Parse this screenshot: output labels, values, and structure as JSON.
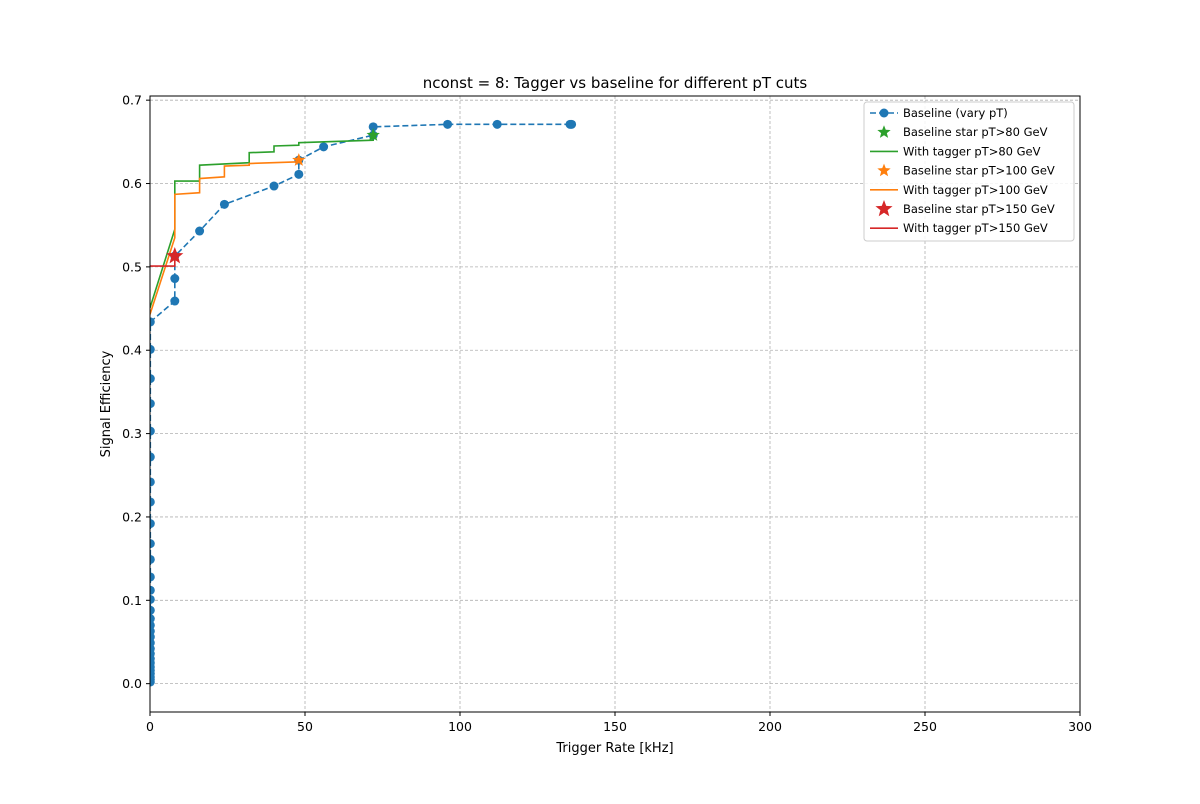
{
  "chart_data": {
    "type": "line",
    "title": "nconst = 8: Tagger vs baseline for different pT cuts",
    "xlabel": "Trigger Rate [kHz]",
    "ylabel": "Signal Efficiency",
    "xlim": [
      0,
      300
    ],
    "ylim": [
      -0.034,
      0.705
    ],
    "x_ticks": [
      0,
      50,
      100,
      150,
      200,
      250,
      300
    ],
    "y_ticks": [
      0.0,
      0.1,
      0.2,
      0.3,
      0.4,
      0.5,
      0.6,
      0.7
    ],
    "x_tick_labels": [
      "0",
      "50",
      "100",
      "150",
      "200",
      "250",
      "300"
    ],
    "y_tick_labels": [
      "0.0",
      "0.1",
      "0.2",
      "0.3",
      "0.4",
      "0.5",
      "0.6",
      "0.7"
    ],
    "grid": true,
    "legend_position": "top-right",
    "series": [
      {
        "name": "Baseline (vary pT)",
        "kind": "line-markers",
        "color": "#1f77b4",
        "linestyle": "dashed",
        "points": [
          [
            0.1,
            0.002
          ],
          [
            0.1,
            0.005
          ],
          [
            0.1,
            0.008
          ],
          [
            0.1,
            0.012
          ],
          [
            0.1,
            0.016
          ],
          [
            0.1,
            0.02
          ],
          [
            0.1,
            0.025
          ],
          [
            0.1,
            0.03
          ],
          [
            0.1,
            0.036
          ],
          [
            0.1,
            0.042
          ],
          [
            0.1,
            0.049
          ],
          [
            0.1,
            0.056
          ],
          [
            0.1,
            0.063
          ],
          [
            0.1,
            0.07
          ],
          [
            0.1,
            0.078
          ],
          [
            0.1,
            0.088
          ],
          [
            0.1,
            0.101
          ],
          [
            0.1,
            0.112
          ],
          [
            0.1,
            0.128
          ],
          [
            0.1,
            0.149
          ],
          [
            0.1,
            0.168
          ],
          [
            0.1,
            0.192
          ],
          [
            0.1,
            0.218
          ],
          [
            0.1,
            0.242
          ],
          [
            0.1,
            0.272
          ],
          [
            0.1,
            0.303
          ],
          [
            0.1,
            0.336
          ],
          [
            0.1,
            0.366
          ],
          [
            0.1,
            0.401
          ],
          [
            0.1,
            0.434
          ],
          [
            8,
            0.459
          ],
          [
            8,
            0.486
          ],
          [
            8,
            0.513
          ],
          [
            16,
            0.543
          ],
          [
            24,
            0.575
          ],
          [
            40,
            0.597
          ],
          [
            48,
            0.611
          ],
          [
            48,
            0.628
          ],
          [
            56,
            0.644
          ],
          [
            72,
            0.658
          ],
          [
            72,
            0.668
          ],
          [
            96,
            0.671
          ],
          [
            112,
            0.671
          ],
          [
            135.5,
            0.671
          ],
          [
            136,
            0.671
          ]
        ]
      },
      {
        "name": "Baseline star pT>80 GeV",
        "kind": "star",
        "color": "#2ca02c",
        "points": [
          [
            72,
            0.658
          ]
        ]
      },
      {
        "name": "With tagger pT>80 GeV",
        "kind": "step",
        "color": "#2ca02c",
        "points": [
          [
            0,
            0.451
          ],
          [
            8,
            0.545
          ],
          [
            8,
            0.603
          ],
          [
            16,
            0.603
          ],
          [
            16,
            0.622
          ],
          [
            32,
            0.625
          ],
          [
            32,
            0.637
          ],
          [
            40,
            0.638
          ],
          [
            40,
            0.645
          ],
          [
            48,
            0.646
          ],
          [
            48,
            0.649
          ],
          [
            72,
            0.652
          ],
          [
            72,
            0.658
          ]
        ]
      },
      {
        "name": "Baseline star pT>100 GeV",
        "kind": "star",
        "color": "#ff7f0e",
        "points": [
          [
            48,
            0.628
          ]
        ]
      },
      {
        "name": "With tagger pT>100 GeV",
        "kind": "step",
        "color": "#ff7f0e",
        "points": [
          [
            0,
            0.443
          ],
          [
            8,
            0.535
          ],
          [
            8,
            0.587
          ],
          [
            16,
            0.589
          ],
          [
            16,
            0.606
          ],
          [
            24,
            0.608
          ],
          [
            24,
            0.621
          ],
          [
            32,
            0.622
          ],
          [
            32,
            0.624
          ],
          [
            48,
            0.626
          ],
          [
            48,
            0.628
          ]
        ]
      },
      {
        "name": "Baseline star pT>150 GeV",
        "kind": "star",
        "color": "#d62728",
        "points": [
          [
            8,
            0.513
          ]
        ]
      },
      {
        "name": "With tagger pT>150 GeV",
        "kind": "step",
        "color": "#d62728",
        "points": [
          [
            0,
            0.501
          ],
          [
            8,
            0.501
          ],
          [
            8,
            0.513
          ]
        ]
      }
    ]
  }
}
